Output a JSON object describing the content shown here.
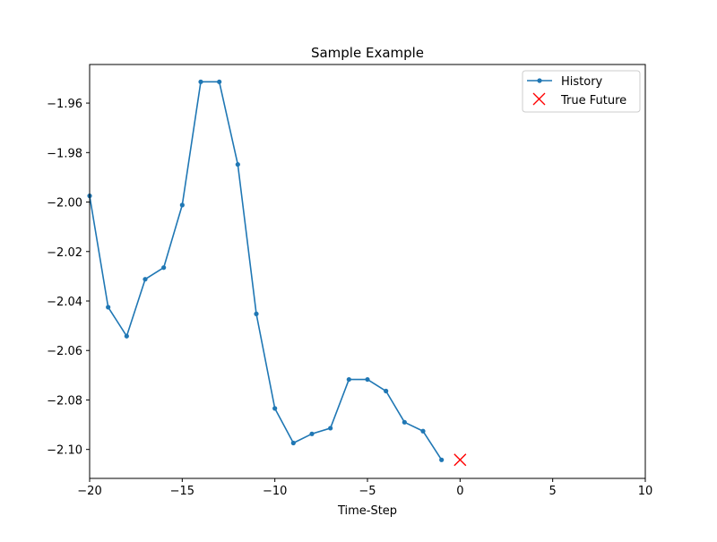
{
  "chart_data": {
    "type": "line",
    "title": "Sample Example",
    "xlabel": "Time-Step",
    "ylabel": "",
    "xlim": [
      -20,
      10
    ],
    "ylim": [
      -2.1117,
      -1.9444
    ],
    "xticks": [
      -20,
      -15,
      -10,
      -5,
      0,
      5,
      10
    ],
    "xtick_labels": [
      "−20",
      "−15",
      "−10",
      "−5",
      "0",
      "5",
      "10"
    ],
    "yticks": [
      -2.1,
      -2.08,
      -2.06,
      -2.04,
      -2.02,
      -2.0,
      -1.98,
      -1.96
    ],
    "ytick_labels": [
      "−2.10",
      "−2.08",
      "−2.06",
      "−2.04",
      "−2.02",
      "−2.00",
      "−1.98",
      "−1.96"
    ],
    "grid": false,
    "legend_position": "upper right",
    "series": [
      {
        "name": "History",
        "kind": "line-with-dot-markers",
        "color": "#1f77b4",
        "x": [
          -20,
          -19,
          -18,
          -17,
          -16,
          -15,
          -14,
          -13,
          -12,
          -11,
          -10,
          -9,
          -8,
          -7,
          -6,
          -5,
          -4,
          -3,
          -2,
          -1
        ],
        "y": [
          -1.9975,
          -2.0425,
          -2.0542,
          -2.0312,
          -2.0265,
          -2.0012,
          -1.9514,
          -1.9514,
          -1.9848,
          -2.0452,
          -2.0834,
          -2.0974,
          -2.0937,
          -2.0914,
          -2.0717,
          -2.0717,
          -2.0764,
          -2.089,
          -2.0926,
          -2.1042
        ]
      },
      {
        "name": "True Future",
        "kind": "x-marker",
        "color": "#ff0000",
        "x": [
          0
        ],
        "y": [
          -2.1042
        ]
      }
    ]
  }
}
